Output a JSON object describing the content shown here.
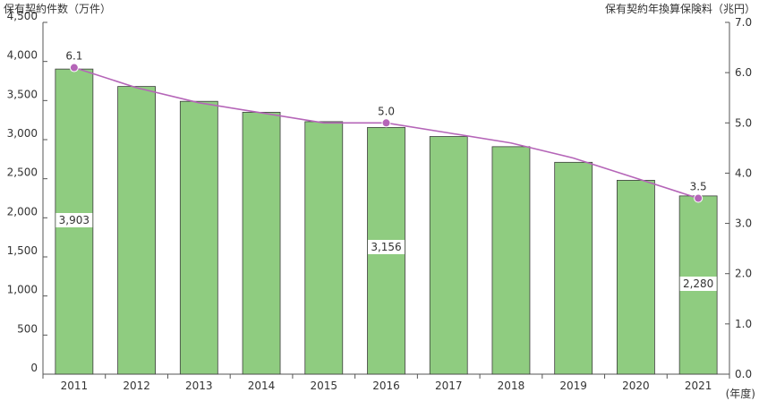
{
  "chart_data": {
    "type": "bar",
    "left_axis_title": "保有契約件数（万件）",
    "right_axis_title": "保有契約年換算保険料（兆円）",
    "x_unit": "(年度)",
    "categories": [
      "2011",
      "2012",
      "2013",
      "2014",
      "2015",
      "2016",
      "2017",
      "2018",
      "2019",
      "2020",
      "2021"
    ],
    "ylim_left": [
      0,
      4500
    ],
    "yticks_left": [
      "0",
      "500",
      "1,000",
      "1,500",
      "2,000",
      "2,500",
      "3,000",
      "3,500",
      "4,000",
      "4,500"
    ],
    "ylim_right": [
      0,
      7.0
    ],
    "yticks_right": [
      "0.0",
      "1.0",
      "2.0",
      "3.0",
      "4.0",
      "5.0",
      "6.0",
      "7.0"
    ],
    "series": [
      {
        "axis": "left",
        "kind": "bar",
        "color": "#8fcc80",
        "values": [
          3903,
          3680,
          3490,
          3350,
          3230,
          3156,
          3040,
          2910,
          2710,
          2480,
          2280
        ],
        "data_labels": {
          "0": "3,903",
          "5": "3,156",
          "10": "2,280"
        }
      },
      {
        "axis": "right",
        "kind": "line",
        "color": "#b565b8",
        "values": [
          6.1,
          5.7,
          5.4,
          5.2,
          5.0,
          5.0,
          4.8,
          4.6,
          4.3,
          3.9,
          3.5
        ],
        "data_labels": {
          "0": "6.1",
          "5": "5.0",
          "10": "3.5"
        }
      }
    ],
    "grid": false
  }
}
